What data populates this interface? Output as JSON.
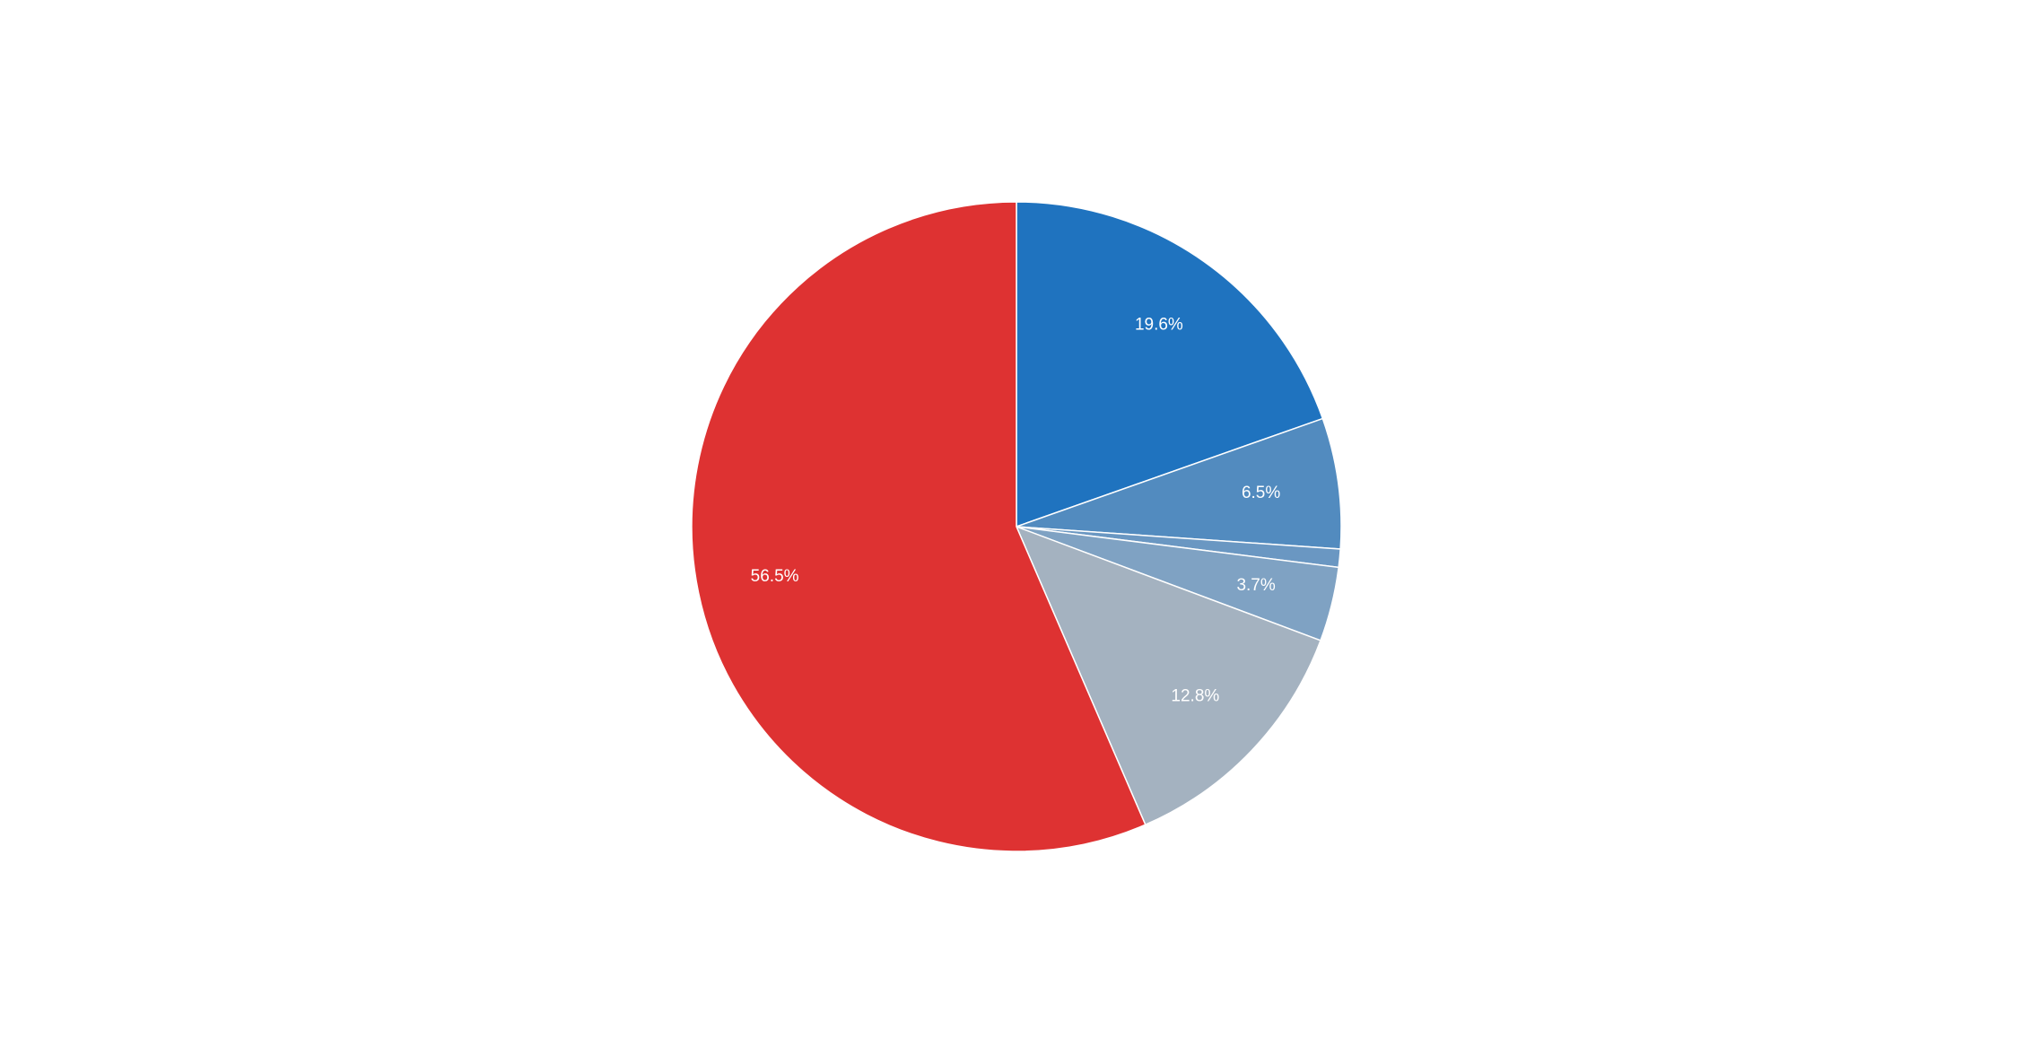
{
  "chart_data": {
    "type": "pie",
    "start_angle": "12 o'clock",
    "direction": "clockwise",
    "slices": [
      {
        "value": 19.6,
        "label": "19.6%",
        "color": "#1f73bf"
      },
      {
        "value": 6.5,
        "label": "6.5%",
        "color": "#528bbf"
      },
      {
        "value": 0.9,
        "label": "",
        "color": "#6a97c2"
      },
      {
        "value": 3.7,
        "label": "3.7%",
        "color": "#7fa2c3"
      },
      {
        "value": 12.8,
        "label": "12.8%",
        "color": "#a4b2c0"
      },
      {
        "value": 56.5,
        "label": "56.5%",
        "color": "#de3232"
      }
    ]
  }
}
